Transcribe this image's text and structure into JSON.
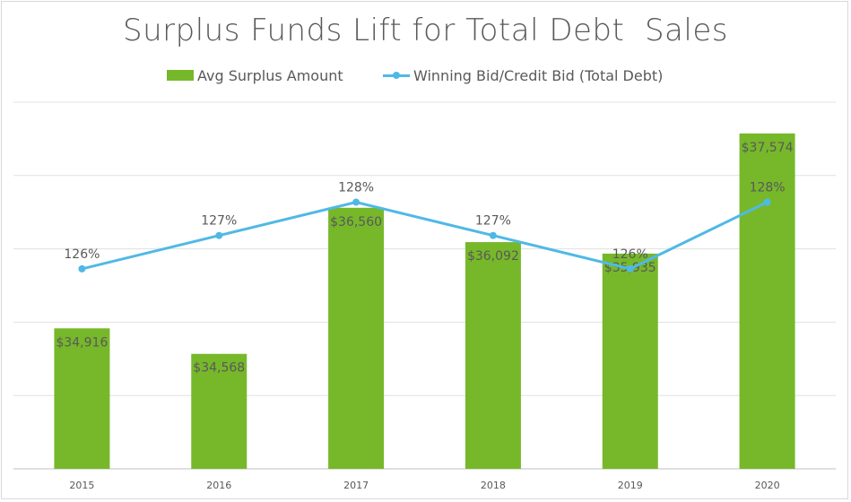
{
  "chart_data": {
    "type": "bar",
    "title": "Surplus Funds Lift for Total Debt  Sales",
    "categories": [
      "2015",
      "2016",
      "2017",
      "2018",
      "2019",
      "2020"
    ],
    "series": [
      {
        "name": "Avg Surplus Amount",
        "type": "bar",
        "values": [
          34916,
          34568,
          36560,
          36092,
          35935,
          37574
        ],
        "labels": [
          "$34,916",
          "$34,568",
          "$36,560",
          "$36,092",
          "$35,935",
          "$37,574"
        ],
        "color": "#76b82a"
      },
      {
        "name": "Winning Bid/Credit Bid (Total Debt)",
        "type": "line",
        "values": [
          126,
          127,
          128,
          127,
          126,
          128
        ],
        "labels": [
          "126%",
          "127%",
          "128%",
          "127%",
          "126%",
          "128%"
        ],
        "color": "#4fb9e6"
      }
    ],
    "y_axis_bar": {
      "range": [
        33000,
        38000
      ],
      "tick_step": 1000,
      "tick_labels_visible": false
    },
    "grid": true,
    "legend_position": "top"
  }
}
